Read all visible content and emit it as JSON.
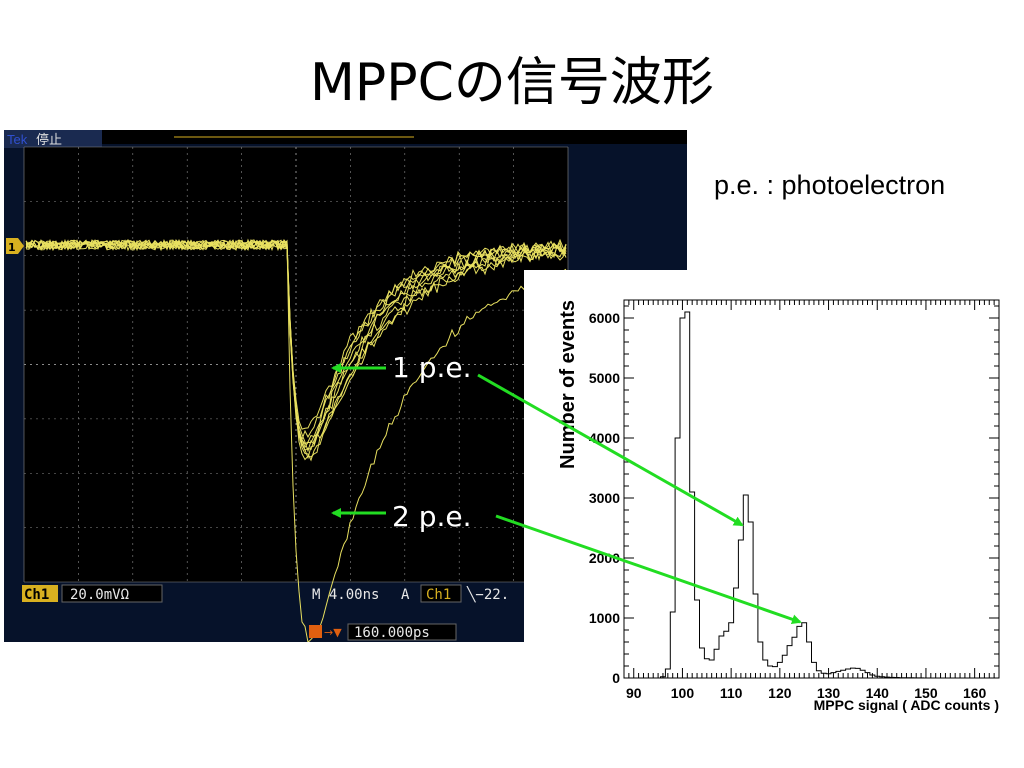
{
  "title": "MPPCの信号波形",
  "pe_note": "p.e. : photoelectron",
  "scope": {
    "brand": "Tek",
    "status": "停止",
    "ch_marker": "1",
    "trigger_marker": "T",
    "ch_label": "Ch1",
    "ch_scale": "20.0mVΩ",
    "timebase": "M 4.00ns",
    "trig_mode": "A",
    "trig_src": "Ch1",
    "trig_level": "╲−22.",
    "delay": "160.000ps",
    "colors": {
      "bg": "#06122a",
      "screen": "#000000",
      "trace": "#e8e060",
      "grid": "#8a8a8a",
      "label": "#d8b020"
    }
  },
  "annotations": {
    "pe1": "1 p.e.",
    "pe2": "2 p.e."
  },
  "chart_data": {
    "type": "line",
    "title": "",
    "xlabel": "MPPC signal ( ADC counts )",
    "ylabel": "Number of events",
    "xlim": [
      88,
      165
    ],
    "ylim": [
      0,
      6300
    ],
    "x_ticks": [
      90,
      100,
      110,
      120,
      130,
      140,
      150,
      160
    ],
    "y_ticks": [
      0,
      1000,
      2000,
      3000,
      4000,
      5000,
      6000
    ],
    "grid": false,
    "series": [
      {
        "step": true,
        "x": [
          96,
          97,
          98,
          99,
          100,
          101,
          102,
          103,
          104,
          105,
          106,
          107,
          108,
          109,
          110,
          111,
          112,
          113,
          114,
          115,
          116,
          117,
          118,
          119,
          120,
          121,
          122,
          123,
          124,
          125,
          126,
          127,
          128,
          129,
          130,
          131,
          132,
          133,
          134,
          135,
          136,
          137,
          138,
          139,
          140,
          141,
          142,
          143,
          144,
          145,
          146,
          147,
          148,
          149,
          150
        ],
        "values": [
          20,
          150,
          1100,
          4000,
          6000,
          6100,
          3100,
          1300,
          500,
          320,
          300,
          480,
          700,
          780,
          920,
          1500,
          2300,
          3050,
          2600,
          1400,
          600,
          300,
          200,
          190,
          260,
          380,
          540,
          680,
          860,
          920,
          600,
          260,
          120,
          80,
          70,
          90,
          110,
          130,
          150,
          165,
          160,
          130,
          90,
          50,
          30,
          20,
          15,
          10,
          8,
          5,
          4,
          3,
          2,
          1,
          0
        ]
      }
    ]
  }
}
